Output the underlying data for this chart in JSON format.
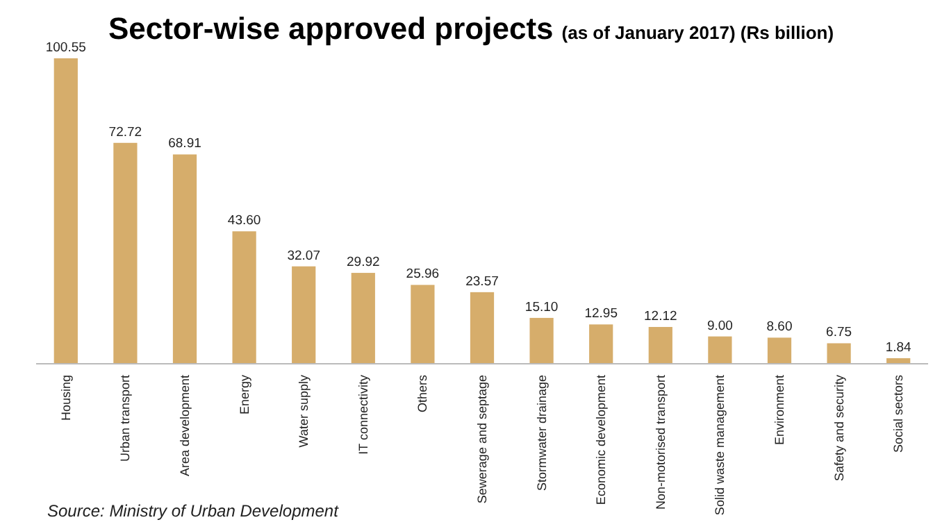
{
  "chart_data": {
    "type": "bar",
    "title": "Sector-wise approved projects",
    "subtitle": "(as of January 2017) (Rs billion)",
    "categories": [
      "Housing",
      "Urban transport",
      "Area development",
      "Energy",
      "Water supply",
      "IT connectivity",
      "Others",
      "Sewerage and septage",
      "Stormwater drainage",
      "Economic development",
      "Non-motorised transport",
      "Solid waste management",
      "Environment",
      "Safety and security",
      "Social sectors"
    ],
    "values": [
      100.55,
      72.72,
      68.91,
      43.6,
      32.07,
      29.92,
      25.96,
      23.57,
      15.1,
      12.95,
      12.12,
      9.0,
      8.6,
      6.75,
      1.84
    ],
    "value_labels": [
      "100.55",
      "72.72",
      "68.91",
      "43.60",
      "32.07",
      "29.92",
      "25.96",
      "23.57",
      "15.10",
      "12.95",
      "12.12",
      "9.00",
      "8.60",
      "6.75",
      "1.84"
    ],
    "color": "#d6ad6b",
    "annotations": [
      "Source: Ministry of Urban Development"
    ]
  }
}
